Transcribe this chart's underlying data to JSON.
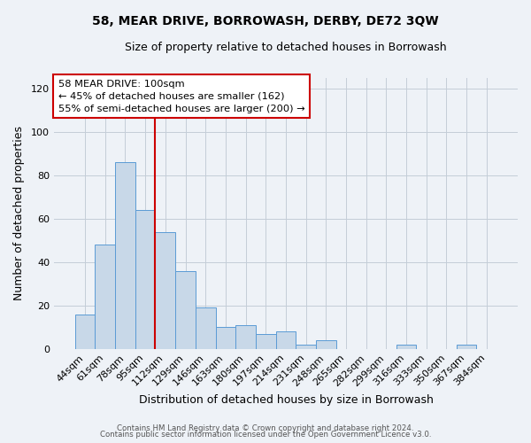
{
  "title": "58, MEAR DRIVE, BORROWASH, DERBY, DE72 3QW",
  "subtitle": "Size of property relative to detached houses in Borrowash",
  "xlabel": "Distribution of detached houses by size in Borrowash",
  "ylabel": "Number of detached properties",
  "bar_color": "#c8d8e8",
  "bar_edge_color": "#5b9bd5",
  "background_color": "#eef2f7",
  "annotation_box_color": "#ffffff",
  "annotation_border_color": "#cc0000",
  "vline_color": "#cc0000",
  "vline_x_idx": 3,
  "categories": [
    "44sqm",
    "61sqm",
    "78sqm",
    "95sqm",
    "112sqm",
    "129sqm",
    "146sqm",
    "163sqm",
    "180sqm",
    "197sqm",
    "214sqm",
    "231sqm",
    "248sqm",
    "265sqm",
    "282sqm",
    "299sqm",
    "316sqm",
    "333sqm",
    "350sqm",
    "367sqm",
    "384sqm"
  ],
  "values": [
    16,
    48,
    86,
    64,
    54,
    36,
    19,
    10,
    11,
    7,
    8,
    2,
    4,
    0,
    0,
    0,
    2,
    0,
    0,
    2,
    0
  ],
  "ylim": [
    0,
    125
  ],
  "yticks": [
    0,
    20,
    40,
    60,
    80,
    100,
    120
  ],
  "annotation_title": "58 MEAR DRIVE: 100sqm",
  "annotation_line1": "← 45% of detached houses are smaller (162)",
  "annotation_line2": "55% of semi-detached houses are larger (200) →",
  "footer1": "Contains HM Land Registry data © Crown copyright and database right 2024.",
  "footer2": "Contains public sector information licensed under the Open Government Licence v3.0."
}
